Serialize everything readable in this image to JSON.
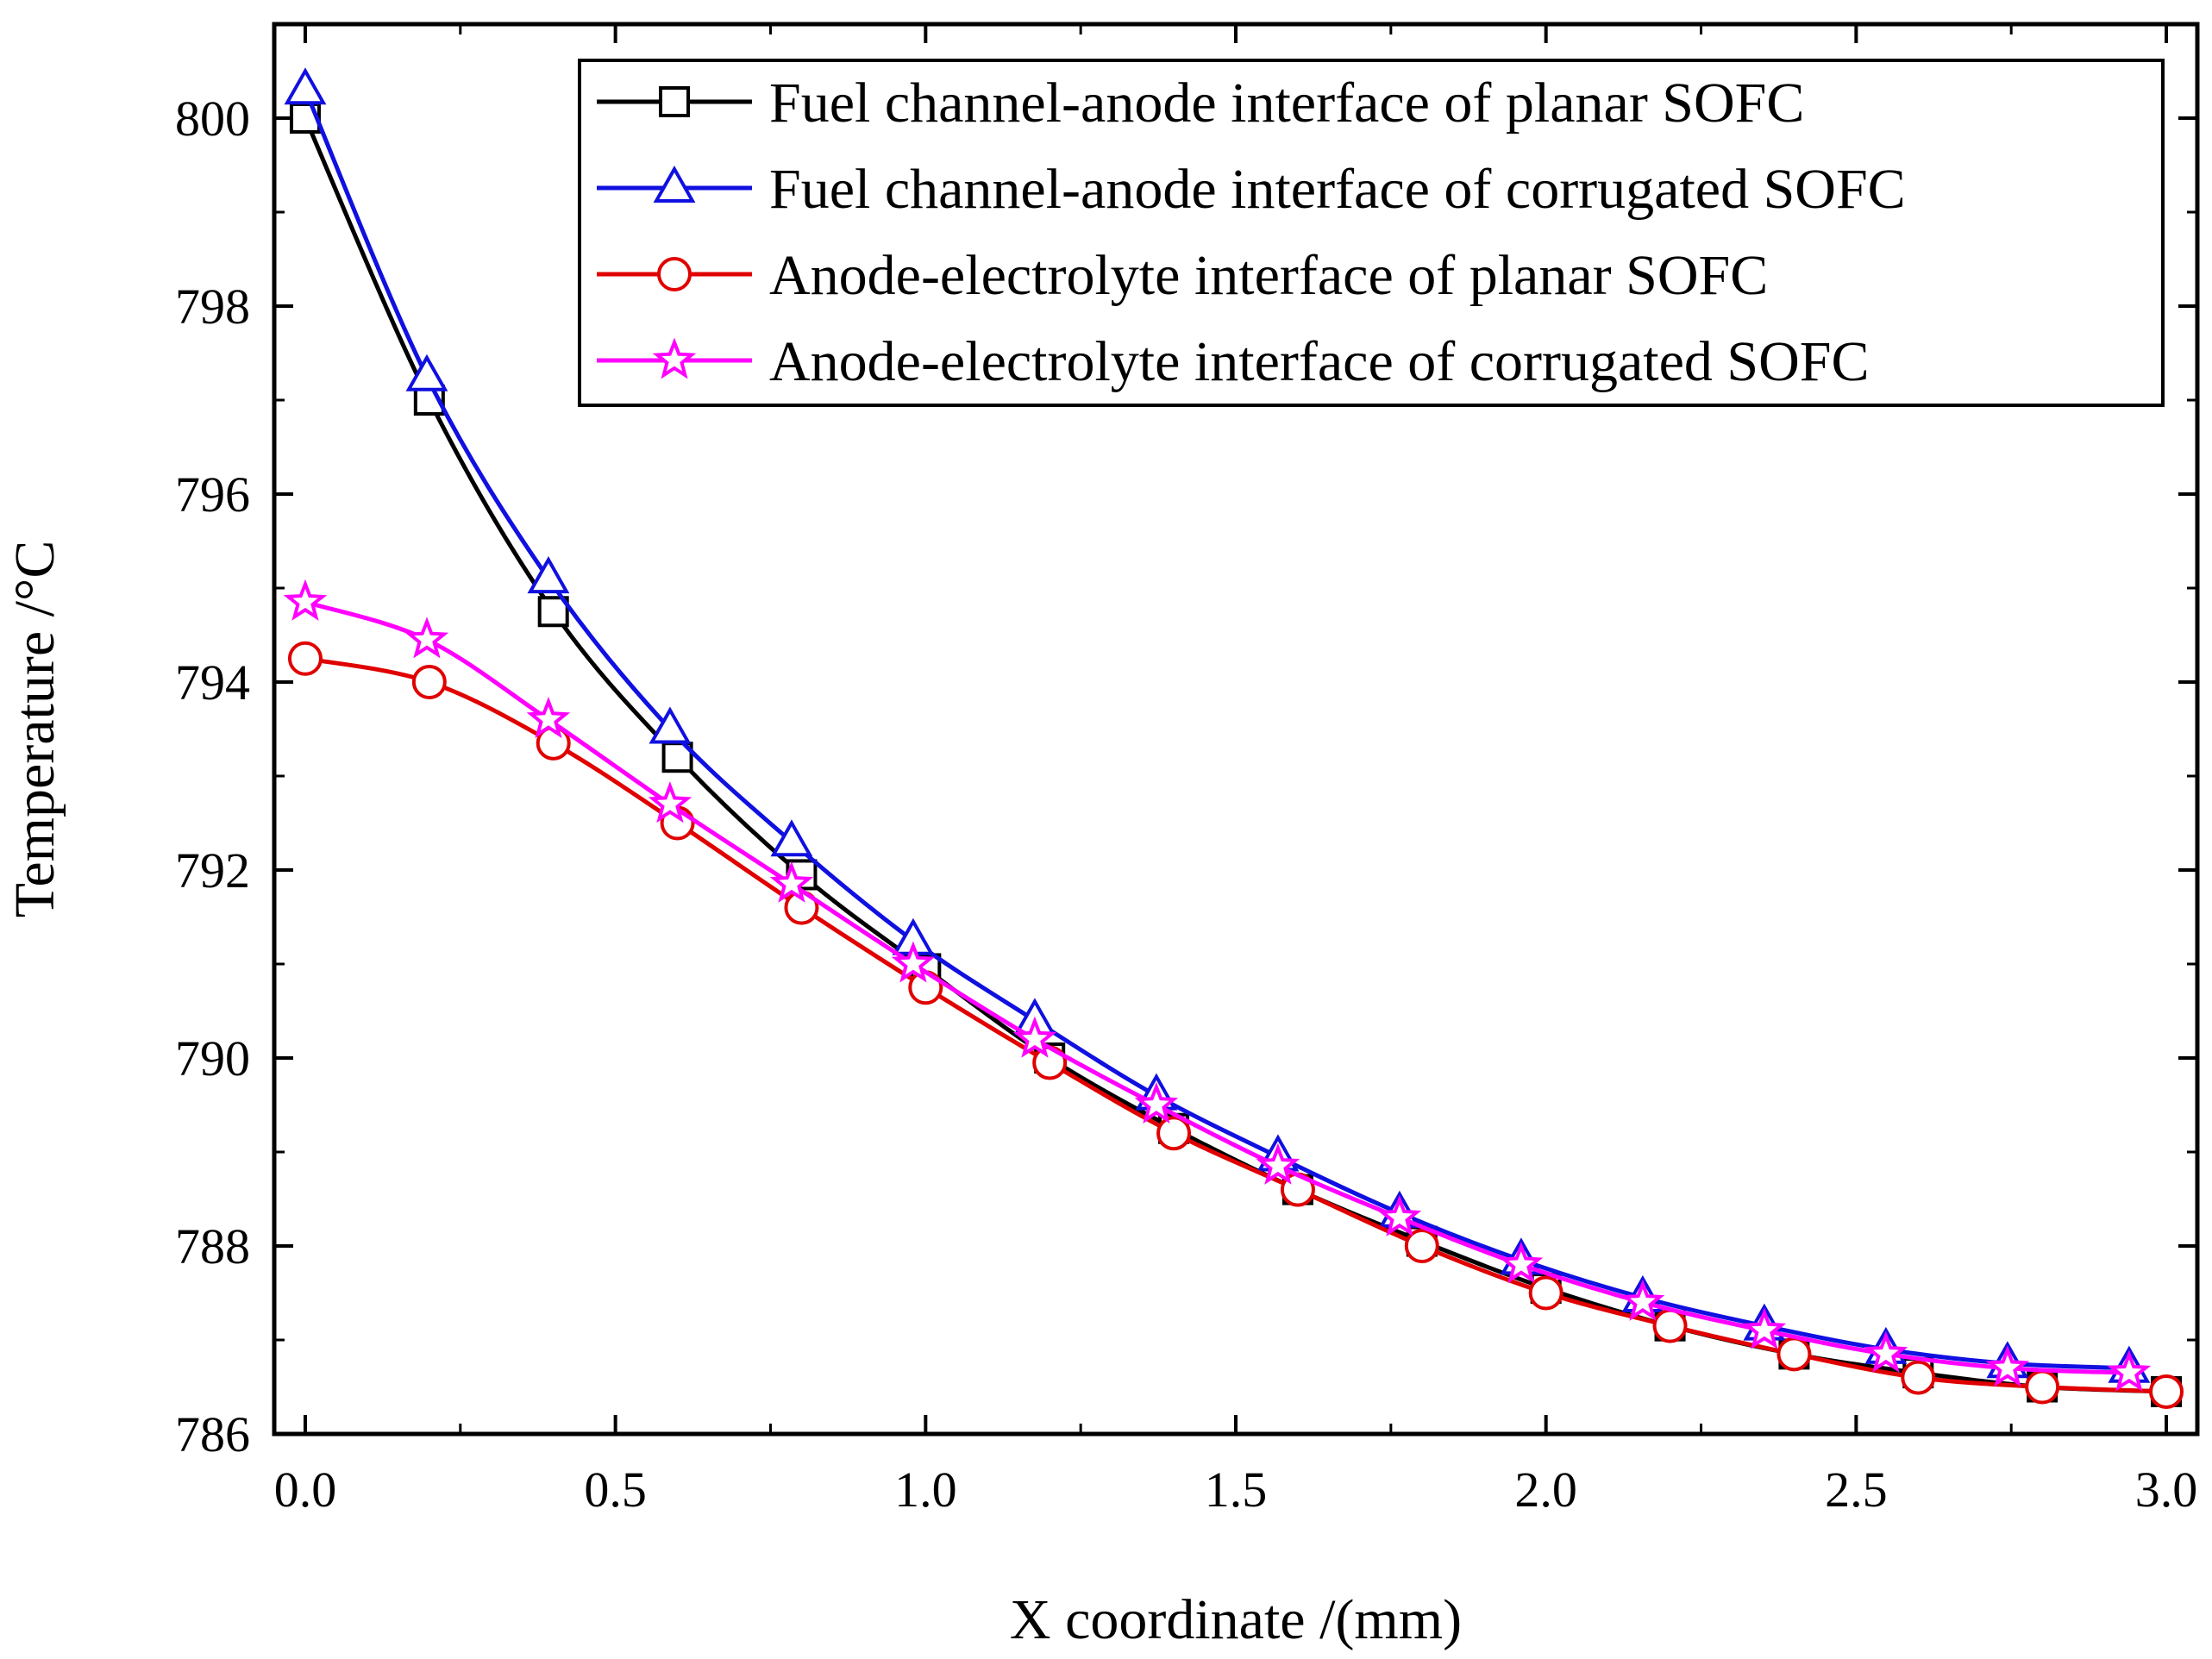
{
  "chart_data": {
    "type": "line",
    "title": "",
    "xlabel": "X coordinate /(mm)",
    "ylabel": "Temperature /°C",
    "xlim": [
      -0.05,
      3.05
    ],
    "ylim": [
      786,
      801
    ],
    "x_ticks": [
      0.0,
      0.5,
      1.0,
      1.5,
      2.0,
      2.5,
      3.0
    ],
    "x_tick_labels": [
      "0.0",
      "0.5",
      "1.0",
      "1.5",
      "2.0",
      "2.5",
      "3.0"
    ],
    "y_ticks": [
      786,
      788,
      790,
      792,
      794,
      796,
      798,
      800
    ],
    "y_tick_labels": [
      "786",
      "788",
      "790",
      "792",
      "794",
      "796",
      "798",
      "800"
    ],
    "grid": false,
    "legend_position": "top-right",
    "series": [
      {
        "name": "Fuel channel-anode interface of planar SOFC",
        "color": "#000000",
        "marker": "square",
        "x": [
          0.0,
          0.2,
          0.4,
          0.6,
          0.8,
          1.0,
          1.2,
          1.4,
          1.6,
          1.8,
          2.0,
          2.2,
          2.4,
          2.6,
          2.8,
          3.0
        ],
        "values": [
          800.0,
          797.0,
          794.75,
          793.2,
          791.95,
          790.95,
          790.0,
          789.25,
          788.6,
          788.05,
          787.55,
          787.15,
          786.85,
          786.65,
          786.5,
          786.45
        ]
      },
      {
        "name": "Fuel channel-anode interface of corrugated SOFC",
        "color": "#1010e0",
        "marker": "triangle",
        "x": [
          0.0,
          0.196,
          0.392,
          0.588,
          0.784,
          0.98,
          1.176,
          1.372,
          1.568,
          1.764,
          1.96,
          2.156,
          2.352,
          2.548,
          2.744,
          2.94
        ],
        "values": [
          800.3,
          797.25,
          795.1,
          793.5,
          792.3,
          791.25,
          790.4,
          789.6,
          788.95,
          788.35,
          787.85,
          787.45,
          787.15,
          786.9,
          786.75,
          786.7
        ]
      },
      {
        "name": "Anode-electrolyte interface of planar SOFC",
        "color": "#e00000",
        "marker": "circle",
        "x": [
          0.0,
          0.2,
          0.4,
          0.6,
          0.8,
          1.0,
          1.2,
          1.4,
          1.6,
          1.8,
          2.0,
          2.2,
          2.4,
          2.6,
          2.8,
          3.0
        ],
        "values": [
          794.25,
          794.0,
          793.35,
          792.5,
          791.6,
          790.75,
          789.95,
          789.2,
          788.6,
          788.0,
          787.5,
          787.15,
          786.85,
          786.6,
          786.5,
          786.45
        ]
      },
      {
        "name": "Anode-electrolyte interface of corrugated SOFC",
        "color": "#ff00ff",
        "marker": "star",
        "x": [
          0.0,
          0.196,
          0.392,
          0.588,
          0.784,
          0.98,
          1.176,
          1.372,
          1.568,
          1.764,
          1.96,
          2.156,
          2.352,
          2.548,
          2.744,
          2.94
        ],
        "values": [
          794.85,
          794.45,
          793.6,
          792.7,
          791.85,
          791.0,
          790.2,
          789.5,
          788.85,
          788.3,
          787.8,
          787.4,
          787.1,
          786.85,
          786.7,
          786.65
        ]
      }
    ]
  }
}
